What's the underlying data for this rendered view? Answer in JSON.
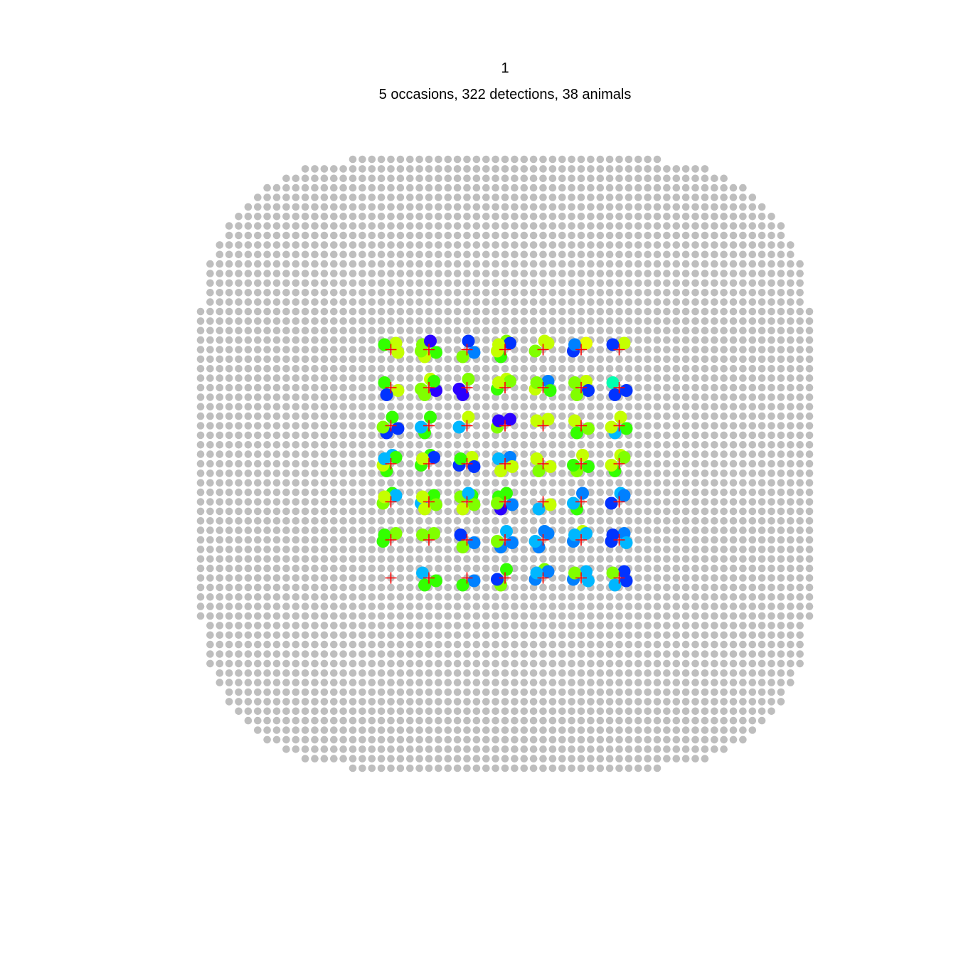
{
  "chart_data": {
    "type": "scatter",
    "title": "1",
    "subtitle": "5 occasions, 322 detections, 38 animals",
    "mask": {
      "color": "#bebebe",
      "x_range": [
        -400,
        400
      ],
      "y_range": [
        -400,
        400
      ],
      "spacing": 12.5,
      "buffer_radius": 100
    },
    "detectors": {
      "marker": "+",
      "color": "#ff0000",
      "x": [
        -150,
        -100,
        -50,
        0,
        50,
        100,
        150
      ],
      "y": [
        150,
        100,
        50,
        0,
        -50,
        -100,
        -150
      ]
    },
    "detection_palette": [
      "#2b00ff",
      "#0033ff",
      "#0080ff",
      "#00b7ff",
      "#00ffb0",
      "#33ff00",
      "#80ff00",
      "#c4ff00",
      "#e6ff00"
    ],
    "detections": [
      {
        "x": -150,
        "y": 150,
        "c": [
          7,
          5,
          7
        ]
      },
      {
        "x": -100,
        "y": 150,
        "c": [
          6,
          5,
          7,
          0,
          6
        ]
      },
      {
        "x": -50,
        "y": 150,
        "c": [
          2,
          6,
          1
        ]
      },
      {
        "x": 0,
        "y": 150,
        "c": [
          5,
          6,
          7,
          1,
          7
        ]
      },
      {
        "x": 50,
        "y": 150,
        "c": [
          7,
          6,
          7
        ]
      },
      {
        "x": 100,
        "y": 150,
        "c": [
          1,
          8,
          2
        ]
      },
      {
        "x": 150,
        "y": 150,
        "c": [
          7,
          1
        ]
      },
      {
        "x": -150,
        "y": 100,
        "c": [
          5,
          7,
          1
        ]
      },
      {
        "x": -100,
        "y": 100,
        "c": [
          0,
          6,
          7,
          6,
          5
        ]
      },
      {
        "x": -50,
        "y": 100,
        "c": [
          0,
          6,
          0
        ]
      },
      {
        "x": 0,
        "y": 100,
        "c": [
          7,
          5,
          6,
          7
        ]
      },
      {
        "x": 50,
        "y": 100,
        "c": [
          7,
          2,
          6,
          5
        ]
      },
      {
        "x": 100,
        "y": 100,
        "c": [
          7,
          6,
          1,
          6
        ]
      },
      {
        "x": 150,
        "y": 100,
        "c": [
          4,
          1,
          1
        ]
      },
      {
        "x": -150,
        "y": 50,
        "c": [
          1,
          1,
          5,
          6
        ]
      },
      {
        "x": -100,
        "y": 50,
        "c": [
          5,
          5,
          3
        ]
      },
      {
        "x": -50,
        "y": 50,
        "c": [
          7,
          3
        ]
      },
      {
        "x": 0,
        "y": 50,
        "c": [
          6,
          0,
          0
        ]
      },
      {
        "x": 50,
        "y": 50,
        "c": [
          7,
          7
        ]
      },
      {
        "x": 100,
        "y": 50,
        "c": [
          7,
          6,
          5
        ]
      },
      {
        "x": 150,
        "y": 50,
        "c": [
          5,
          3,
          7,
          7
        ]
      },
      {
        "x": -150,
        "y": 0,
        "c": [
          5,
          3,
          7,
          5,
          3
        ]
      },
      {
        "x": -100,
        "y": 0,
        "c": [
          5,
          5,
          1,
          7
        ]
      },
      {
        "x": -50,
        "y": 0,
        "c": [
          1,
          7,
          5,
          1
        ]
      },
      {
        "x": 0,
        "y": 0,
        "c": [
          2,
          3,
          7,
          7
        ]
      },
      {
        "x": 50,
        "y": 0,
        "c": [
          7,
          7,
          6
        ]
      },
      {
        "x": 100,
        "y": 0,
        "c": [
          5,
          6,
          7,
          5
        ]
      },
      {
        "x": 150,
        "y": 0,
        "c": [
          5,
          7,
          7,
          6
        ]
      },
      {
        "x": -150,
        "y": -50,
        "c": [
          5,
          6,
          3,
          7
        ]
      },
      {
        "x": -100,
        "y": -50,
        "c": [
          3,
          5,
          7,
          6,
          7
        ]
      },
      {
        "x": -50,
        "y": -50,
        "c": [
          5,
          6,
          6,
          7,
          3
        ]
      },
      {
        "x": 0,
        "y": -50,
        "c": [
          5,
          2,
          0,
          5,
          6
        ]
      },
      {
        "x": 50,
        "y": -50,
        "c": [
          7,
          3
        ]
      },
      {
        "x": 100,
        "y": -50,
        "c": [
          5,
          2,
          3
        ]
      },
      {
        "x": 150,
        "y": -50,
        "c": [
          3,
          1,
          2
        ]
      },
      {
        "x": -150,
        "y": -100,
        "c": [
          5,
          6,
          5
        ]
      },
      {
        "x": -100,
        "y": -100,
        "c": [
          6,
          6
        ]
      },
      {
        "x": -50,
        "y": -100,
        "c": [
          1,
          2,
          6
        ]
      },
      {
        "x": 0,
        "y": -100,
        "c": [
          2,
          2,
          3,
          6
        ]
      },
      {
        "x": 50,
        "y": -100,
        "c": [
          2,
          2,
          3,
          2
        ]
      },
      {
        "x": 100,
        "y": -100,
        "c": [
          7,
          2,
          3,
          3
        ]
      },
      {
        "x": 150,
        "y": -100,
        "c": [
          1,
          2,
          1,
          3
        ]
      },
      {
        "x": -150,
        "y": -150,
        "c": []
      },
      {
        "x": -100,
        "y": -150,
        "c": [
          3,
          5,
          5
        ]
      },
      {
        "x": -50,
        "y": -150,
        "c": [
          2,
          5
        ]
      },
      {
        "x": 0,
        "y": -150,
        "c": [
          6,
          5,
          1
        ]
      },
      {
        "x": 50,
        "y": -150,
        "c": [
          6,
          2,
          2,
          3
        ]
      },
      {
        "x": 100,
        "y": -150,
        "c": [
          2,
          3,
          6,
          3
        ]
      },
      {
        "x": 150,
        "y": -150,
        "c": [
          1,
          6,
          1,
          3
        ]
      }
    ]
  }
}
